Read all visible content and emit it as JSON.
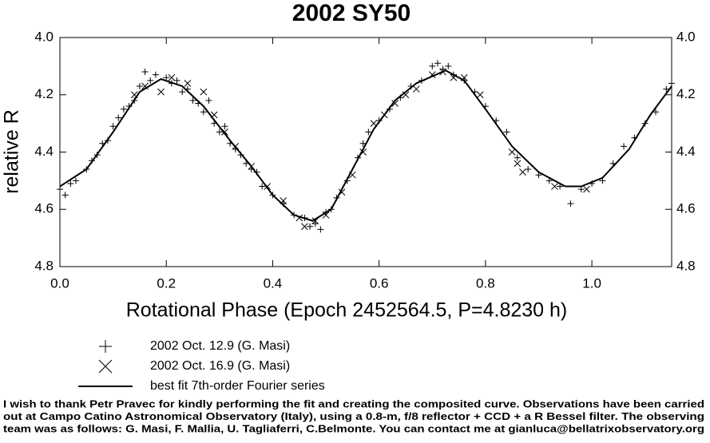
{
  "chart_data": {
    "type": "scatter",
    "title": "2002 SY50",
    "xlabel": "Rotational Phase (Epoch 2452564.5, P=4.8230 h)",
    "ylabel": "relative R",
    "xlim": [
      0,
      1.15
    ],
    "ylim": [
      4.0,
      4.8
    ],
    "y_inverted": true,
    "xticks": [
      {
        "value": 0,
        "label": "0.0"
      },
      0.2,
      0.4,
      0.6,
      0.8,
      {
        "value": 1,
        "label": "1.0"
      }
    ],
    "yticks": [
      {
        "value": 4,
        "label": "4.0"
      },
      4.2,
      4.4,
      4.6,
      4.8
    ],
    "grid": false,
    "series": [
      {
        "name": "2002 Oct. 12.9 (G. Masi)",
        "marker": "plus",
        "color": "#000000",
        "x": [
          0.0,
          0.01,
          0.02,
          0.03,
          0.05,
          0.06,
          0.07,
          0.08,
          0.09,
          0.1,
          0.11,
          0.12,
          0.13,
          0.14,
          0.15,
          0.16,
          0.17,
          0.18,
          0.2,
          0.21,
          0.22,
          0.23,
          0.24,
          0.25,
          0.26,
          0.27,
          0.28,
          0.29,
          0.3,
          0.31,
          0.32,
          0.33,
          0.34,
          0.35,
          0.36,
          0.37,
          0.38,
          0.4,
          0.42,
          0.44,
          0.46,
          0.47,
          0.48,
          0.49,
          0.5,
          0.51,
          0.52,
          0.54,
          0.56,
          0.57,
          0.58,
          0.6,
          0.62,
          0.64,
          0.66,
          0.68,
          0.7,
          0.71,
          0.72,
          0.73,
          0.74,
          0.76,
          0.78,
          0.8,
          0.82,
          0.84,
          0.86,
          0.88,
          0.9,
          0.92,
          0.94,
          0.96,
          0.98,
          1.0,
          1.02,
          1.04,
          1.06,
          1.08,
          1.1,
          1.12,
          1.14,
          1.15
        ],
        "values": [
          4.53,
          4.55,
          4.51,
          4.5,
          4.46,
          4.43,
          4.41,
          4.37,
          4.36,
          4.31,
          4.28,
          4.25,
          4.24,
          4.22,
          4.17,
          4.12,
          4.15,
          4.13,
          4.14,
          4.16,
          4.15,
          4.19,
          4.18,
          4.22,
          4.23,
          4.26,
          4.22,
          4.3,
          4.33,
          4.31,
          4.37,
          4.39,
          4.41,
          4.44,
          4.46,
          4.47,
          4.52,
          4.55,
          4.58,
          4.62,
          4.63,
          4.66,
          4.65,
          4.67,
          4.61,
          4.6,
          4.56,
          4.5,
          4.42,
          4.37,
          4.33,
          4.29,
          4.25,
          4.21,
          4.17,
          4.15,
          4.1,
          4.09,
          4.11,
          4.1,
          4.13,
          4.15,
          4.19,
          4.24,
          4.29,
          4.33,
          4.42,
          4.46,
          4.48,
          4.5,
          4.52,
          4.58,
          4.53,
          4.51,
          4.5,
          4.44,
          4.38,
          4.35,
          4.3,
          4.26,
          4.18,
          4.16
        ]
      },
      {
        "name": "2002 Oct. 16.9 (G. Masi)",
        "marker": "cross",
        "color": "#000000",
        "x": [
          0.14,
          0.16,
          0.19,
          0.21,
          0.24,
          0.27,
          0.29,
          0.31,
          0.33,
          0.36,
          0.39,
          0.42,
          0.45,
          0.46,
          0.48,
          0.5,
          0.53,
          0.55,
          0.57,
          0.59,
          0.61,
          0.63,
          0.65,
          0.67,
          0.7,
          0.72,
          0.74,
          0.76,
          0.79,
          0.85,
          0.86,
          0.87,
          0.93,
          0.99
        ],
        "values": [
          4.2,
          4.17,
          4.19,
          4.14,
          4.16,
          4.19,
          4.27,
          4.33,
          4.38,
          4.45,
          4.52,
          4.57,
          4.63,
          4.66,
          4.64,
          4.62,
          4.54,
          4.48,
          4.4,
          4.3,
          4.27,
          4.23,
          4.2,
          4.18,
          4.13,
          4.12,
          4.14,
          4.14,
          4.2,
          4.4,
          4.44,
          4.47,
          4.52,
          4.53
        ]
      },
      {
        "name": "best fit 7th-order Fourier series",
        "marker": "line",
        "color": "#000000",
        "x": [
          0.0,
          0.05,
          0.1,
          0.15,
          0.19,
          0.23,
          0.27,
          0.32,
          0.36,
          0.4,
          0.44,
          0.475,
          0.51,
          0.55,
          0.59,
          0.63,
          0.67,
          0.725,
          0.76,
          0.8,
          0.85,
          0.9,
          0.95,
          0.98,
          1.02,
          1.07,
          1.11,
          1.15
        ],
        "values": [
          4.52,
          4.46,
          4.33,
          4.19,
          4.145,
          4.17,
          4.24,
          4.36,
          4.45,
          4.55,
          4.62,
          4.64,
          4.6,
          4.46,
          4.32,
          4.22,
          4.16,
          4.115,
          4.15,
          4.25,
          4.38,
          4.47,
          4.52,
          4.52,
          4.49,
          4.39,
          4.27,
          4.17
        ]
      }
    ],
    "footnote": [
      "I wish to thank Petr Pravec for kindly performing the fit and creating the composited curve. Observations have been carried",
      "out at Campo Catino Astronomical Observatory (Italy), using a 0.8-m, f/8 reflector + CCD + a R  Bessel filter. The observing",
      "team was as follows: G. Masi, F. Mallia, U. Tagliaferri, C.Belmonte. You can contact me at gianluca@bellatrixobservatory.org"
    ]
  }
}
